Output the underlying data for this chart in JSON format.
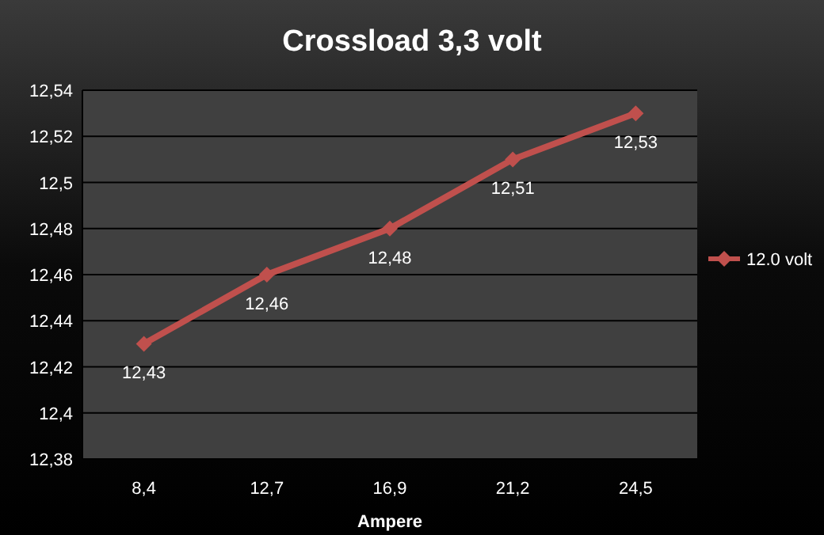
{
  "chart_data": {
    "type": "line",
    "title": "Crossload 3,3 volt",
    "xlabel": "Ampere",
    "categories": [
      "8,4",
      "12,7",
      "16,9",
      "21,2",
      "24,5"
    ],
    "series": [
      {
        "name": "12.0 volt",
        "color": "#c0504d",
        "values": [
          12.43,
          12.46,
          12.48,
          12.51,
          12.53
        ],
        "value_labels": [
          "12,43",
          "12,46",
          "12,48",
          "12,51",
          "12,53"
        ]
      }
    ],
    "ylim": [
      12.38,
      12.54
    ],
    "yticks": [
      {
        "value": 12.38,
        "label": "12,38"
      },
      {
        "value": 12.4,
        "label": "12,4"
      },
      {
        "value": 12.42,
        "label": "12,42"
      },
      {
        "value": 12.44,
        "label": "12,44"
      },
      {
        "value": 12.46,
        "label": "12,46"
      },
      {
        "value": 12.48,
        "label": "12,48"
      },
      {
        "value": 12.5,
        "label": "12,5"
      },
      {
        "value": 12.52,
        "label": "12,52"
      },
      {
        "value": 12.54,
        "label": "12,54"
      }
    ],
    "grid": "y",
    "legend": "right",
    "marker": "diamond",
    "line_style": "solid"
  }
}
